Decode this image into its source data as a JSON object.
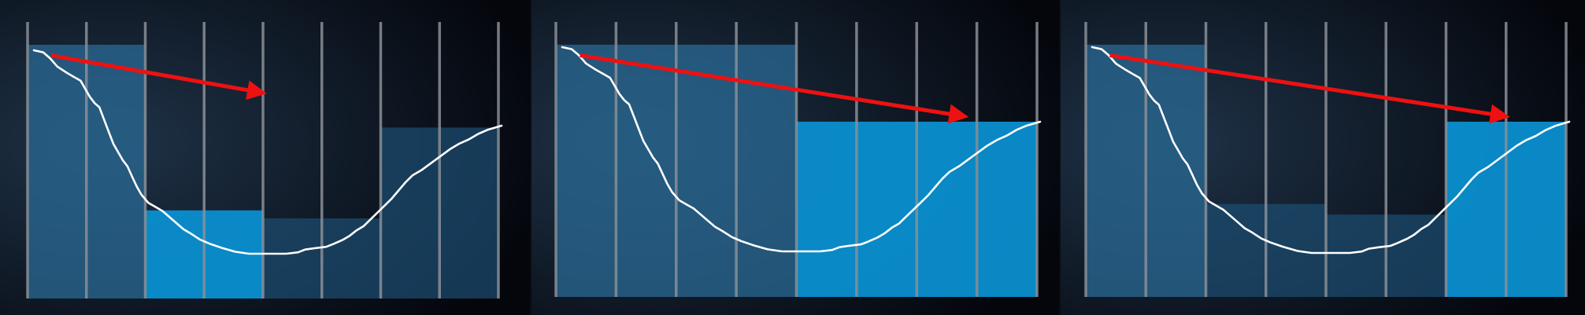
{
  "colors": {
    "background_light": "#1f3348",
    "background_dark": "#04060c",
    "gridline": "#8a8f96",
    "curve": "#ffffff",
    "arrow": "#ee1111",
    "block_dim": "#2a6a94",
    "block_highlight": "#0a8fcf",
    "block_faint": "#1c4f73"
  },
  "diagram": {
    "description_kind": "bounding-volume-hierarchy style step illustration",
    "columns": 8,
    "curve_kind": "valley profile",
    "panels": [
      {
        "id": "panel-1",
        "blocks": [
          {
            "from_col": 0,
            "to_col": 2,
            "level": 0.95,
            "style": "block_dim"
          },
          {
            "from_col": 2,
            "to_col": 4,
            "level": 0.33,
            "style": "block_highlight"
          },
          {
            "from_col": 4,
            "to_col": 6,
            "level": 0.3,
            "style": "block_faint"
          },
          {
            "from_col": 6,
            "to_col": 8,
            "level": 0.64,
            "style": "block_faint"
          }
        ],
        "arrow": {
          "from_col": 0.4,
          "from_level": 0.91,
          "to_col": 4.0,
          "to_level": 0.77
        }
      },
      {
        "id": "panel-2",
        "blocks": [
          {
            "from_col": 0,
            "to_col": 4,
            "level": 0.95,
            "style": "block_dim"
          },
          {
            "from_col": 4,
            "to_col": 8,
            "level": 0.66,
            "style": "block_highlight"
          }
        ],
        "arrow": {
          "from_col": 0.4,
          "from_level": 0.91,
          "to_col": 6.8,
          "to_level": 0.68
        }
      },
      {
        "id": "panel-3",
        "blocks": [
          {
            "from_col": 0,
            "to_col": 2,
            "level": 0.95,
            "style": "block_dim"
          },
          {
            "from_col": 2,
            "to_col": 4,
            "level": 0.35,
            "style": "block_faint"
          },
          {
            "from_col": 4,
            "to_col": 6,
            "level": 0.31,
            "style": "block_faint"
          },
          {
            "from_col": 6,
            "to_col": 8,
            "level": 0.66,
            "style": "block_highlight"
          }
        ],
        "arrow": {
          "from_col": 0.4,
          "from_level": 0.91,
          "to_col": 7.0,
          "to_level": 0.68
        }
      }
    ]
  }
}
